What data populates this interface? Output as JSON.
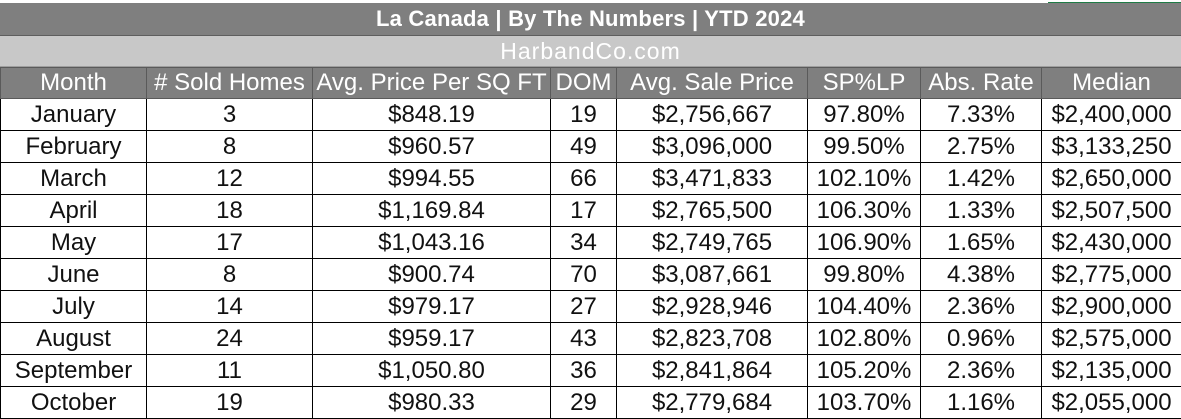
{
  "title": "La Canada |  By The Numbers  |  YTD 2024",
  "subtitle": "HarbandCo.com",
  "columns": [
    "Month",
    "# Sold Homes",
    "Avg. Price Per SQ FT",
    "DOM",
    "Avg. Sale Price",
    "SP%LP",
    "Abs. Rate",
    "Median"
  ],
  "rows": [
    [
      "January",
      "3",
      "$848.19",
      "19",
      "$2,756,667",
      "97.80%",
      "7.33%",
      "$2,400,000"
    ],
    [
      "February",
      "8",
      "$960.57",
      "49",
      "$3,096,000",
      "99.50%",
      "2.75%",
      "$3,133,250"
    ],
    [
      "March",
      "12",
      "$994.55",
      "66",
      "$3,471,833",
      "102.10%",
      "1.42%",
      "$2,650,000"
    ],
    [
      "April",
      "18",
      "$1,169.84",
      "17",
      "$2,765,500",
      "106.30%",
      "1.33%",
      "$2,507,500"
    ],
    [
      "May",
      "17",
      "$1,043.16",
      "34",
      "$2,749,765",
      "106.90%",
      "1.65%",
      "$2,430,000"
    ],
    [
      "June",
      "8",
      "$900.74",
      "70",
      "$3,087,661",
      "99.80%",
      "4.38%",
      "$2,775,000"
    ],
    [
      "July",
      "14",
      "$979.17",
      "27",
      "$2,928,946",
      "104.40%",
      "2.36%",
      "$2,900,000"
    ],
    [
      "August",
      "24",
      "$959.17",
      "43",
      "$2,823,708",
      "102.80%",
      "0.96%",
      "$2,575,000"
    ],
    [
      "September",
      "11",
      "$1,050.80",
      "36",
      "$2,841,864",
      "105.20%",
      "2.36%",
      "$2,135,000"
    ],
    [
      "October",
      "19",
      "$980.33",
      "29",
      "$2,779,684",
      "103.70%",
      "1.16%",
      "$2,055,000"
    ]
  ]
}
